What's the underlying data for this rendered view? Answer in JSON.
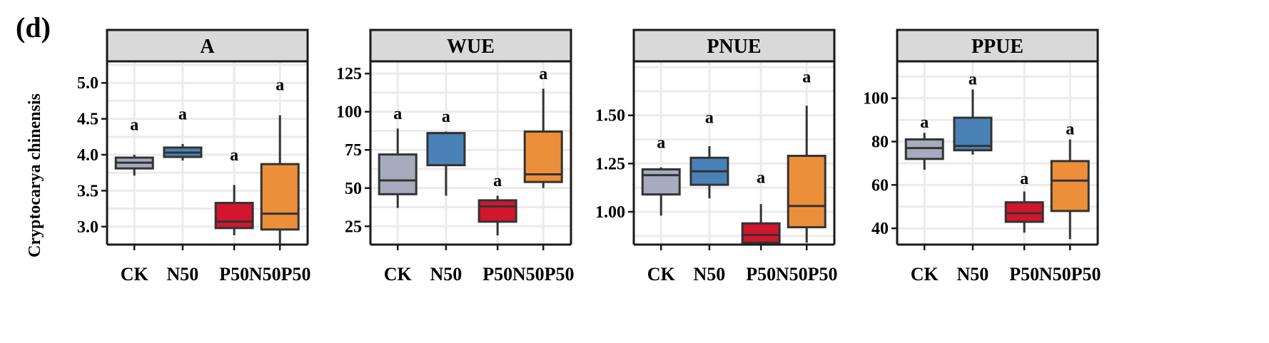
{
  "panel_label": "(d)",
  "y_axis_title": "Cryptocarya chinensis",
  "group_colors": {
    "CK": "#a7abbd",
    "N50": "#4a82b8",
    "P50": "#d2162e",
    "N50P50": "#ec8f3b"
  },
  "chart_data": [
    {
      "type": "box",
      "title": "A",
      "categories": [
        "CK",
        "N50",
        "P50",
        "N50P50"
      ],
      "ylim": [
        2.75,
        5.3
      ],
      "yticks": [
        3.0,
        3.5,
        4.0,
        4.5,
        5.0
      ],
      "ytick_labels": [
        "3.0",
        "3.5",
        "4.0",
        "4.5",
        "5.0"
      ],
      "boxes": [
        {
          "group": "CK",
          "min": 3.71,
          "q1": 3.81,
          "median": 3.89,
          "q3": 3.96,
          "max": 4.0,
          "letter": "a",
          "letter_y": 4.42
        },
        {
          "group": "N50",
          "min": 3.92,
          "q1": 3.97,
          "median": 4.03,
          "q3": 4.1,
          "max": 4.15,
          "letter": "a",
          "letter_y": 4.57
        },
        {
          "group": "P50",
          "min": 2.88,
          "q1": 2.98,
          "median": 3.07,
          "q3": 3.33,
          "max": 3.58,
          "letter": "a",
          "letter_y": 4.0
        },
        {
          "group": "N50P50",
          "min": 2.75,
          "q1": 2.96,
          "median": 3.18,
          "q3": 3.87,
          "max": 4.55,
          "letter": "a",
          "letter_y": 4.98
        }
      ]
    },
    {
      "type": "box",
      "title": "WUE",
      "categories": [
        "CK",
        "N50",
        "P50",
        "N50P50"
      ],
      "ylim": [
        13,
        133
      ],
      "yticks": [
        25,
        50,
        75,
        100,
        125
      ],
      "ytick_labels": [
        "25",
        "50",
        "75",
        "100",
        "125"
      ],
      "boxes": [
        {
          "group": "CK",
          "min": 37,
          "q1": 46,
          "median": 55,
          "q3": 72,
          "max": 89,
          "letter": "a",
          "letter_y": 99
        },
        {
          "group": "N50",
          "min": 45,
          "q1": 65,
          "median": 86,
          "q3": 86,
          "max": 87,
          "letter": "a",
          "letter_y": 97
        },
        {
          "group": "P50",
          "min": 19,
          "q1": 28,
          "median": 38,
          "q3": 42,
          "max": 45,
          "letter": "a",
          "letter_y": 55
        },
        {
          "group": "N50P50",
          "min": 50,
          "q1": 54,
          "median": 59,
          "q3": 87,
          "max": 115,
          "letter": "a",
          "letter_y": 125
        }
      ]
    },
    {
      "type": "box",
      "title": "PNUE",
      "categories": [
        "CK",
        "N50",
        "P50",
        "N50P50"
      ],
      "ylim": [
        0.83,
        1.78
      ],
      "yticks": [
        1.0,
        1.25,
        1.5
      ],
      "ytick_labels": [
        "1.00",
        "1.25",
        "1.50"
      ],
      "boxes": [
        {
          "group": "CK",
          "min": 0.98,
          "q1": 1.09,
          "median": 1.19,
          "q3": 1.22,
          "max": 1.23,
          "letter": "a",
          "letter_y": 1.36
        },
        {
          "group": "N50",
          "min": 1.07,
          "q1": 1.14,
          "median": 1.21,
          "q3": 1.28,
          "max": 1.34,
          "letter": "a",
          "letter_y": 1.49
        },
        {
          "group": "P50",
          "min": 0.84,
          "q1": 0.84,
          "median": 0.88,
          "q3": 0.94,
          "max": 1.04,
          "letter": "a",
          "letter_y": 1.18
        },
        {
          "group": "N50P50",
          "min": 0.84,
          "q1": 0.92,
          "median": 1.03,
          "q3": 1.29,
          "max": 1.55,
          "letter": "a",
          "letter_y": 1.7
        }
      ]
    },
    {
      "type": "box",
      "title": "PPUE",
      "categories": [
        "CK",
        "N50",
        "P50",
        "N50P50"
      ],
      "ylim": [
        32.5,
        117
      ],
      "yticks": [
        40,
        60,
        80,
        100
      ],
      "ytick_labels": [
        "40",
        "60",
        "80",
        "100"
      ],
      "boxes": [
        {
          "group": "CK",
          "min": 67,
          "q1": 72,
          "median": 77,
          "q3": 81,
          "max": 84,
          "letter": "a",
          "letter_y": 89
        },
        {
          "group": "N50",
          "min": 74,
          "q1": 76,
          "median": 78,
          "q3": 91,
          "max": 104,
          "letter": "a",
          "letter_y": 109
        },
        {
          "group": "P50",
          "min": 38,
          "q1": 43,
          "median": 47,
          "q3": 52,
          "max": 57,
          "letter": "a",
          "letter_y": 63
        },
        {
          "group": "N50P50",
          "min": 35,
          "q1": 48,
          "median": 62,
          "q3": 71,
          "max": 81,
          "letter": "a",
          "letter_y": 86
        }
      ]
    }
  ]
}
